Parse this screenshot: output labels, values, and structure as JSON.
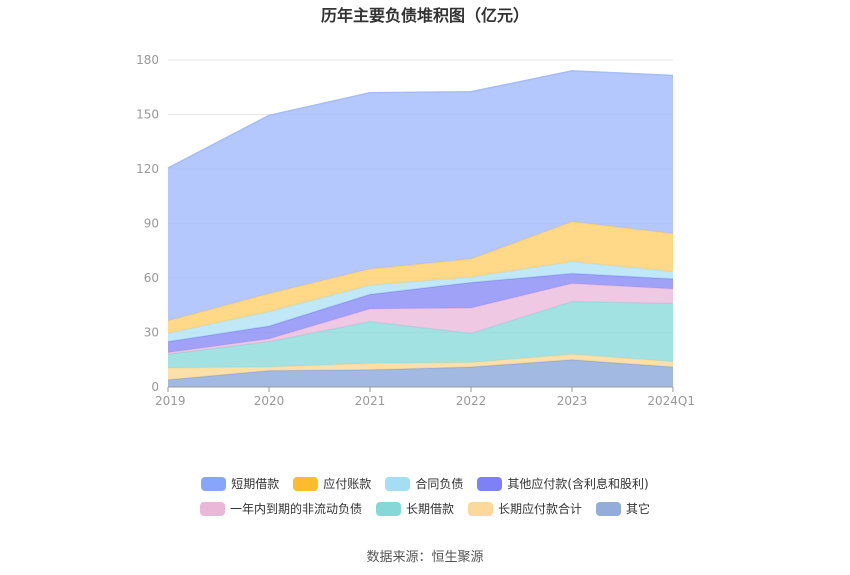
{
  "chart_data": {
    "type": "area",
    "stacked": true,
    "title": "历年主要负债堆积图（亿元）",
    "x": [
      "2019",
      "2020",
      "2021",
      "2022",
      "2023",
      "2024Q1"
    ],
    "ylim": [
      0,
      180
    ],
    "yticks": [
      0,
      30,
      60,
      90,
      120,
      150,
      180
    ],
    "grid": true,
    "legend_position": "bottom",
    "series": [
      {
        "name": "其它",
        "color": "#8ea9db",
        "values": [
          4,
          9,
          9.5,
          11,
          15,
          11
        ]
      },
      {
        "name": "长期应付款合计",
        "color": "#fcd996",
        "values": [
          6.5,
          2,
          3.5,
          2.5,
          3,
          3
        ]
      },
      {
        "name": "长期借款",
        "color": "#8fdcdc",
        "values": [
          7.5,
          14,
          23,
          16,
          29,
          32
        ]
      },
      {
        "name": "一年内到期的非流动负债",
        "color": "#ecbcdd",
        "values": [
          1,
          1.5,
          7,
          14,
          10,
          8
        ]
      },
      {
        "name": "其他应付款(含利息和股利)",
        "color": "#8b8df7",
        "values": [
          6,
          7,
          8,
          14,
          5.5,
          5.5
        ]
      },
      {
        "name": "合同负债",
        "color": "#b3e3f5",
        "values": [
          4.5,
          8,
          5,
          3,
          6.5,
          4
        ]
      },
      {
        "name": "应付账款",
        "color": "#ffd06e",
        "values": [
          7,
          10,
          9,
          10,
          22,
          21
        ]
      },
      {
        "name": "短期借款",
        "color": "#a4bcfc",
        "values": [
          84,
          98,
          97,
          92,
          83,
          87
        ]
      }
    ],
    "legend_order": [
      "短期借款",
      "应付账款",
      "合同负债",
      "其他应付款(含利息和股利)",
      "一年内到期的非流动负债",
      "长期借款",
      "长期应付款合计",
      "其它"
    ],
    "legend_colors": [
      "#86a5fb",
      "#fbbd2e",
      "#a3def5",
      "#7d80f6",
      "#eab7d9",
      "#86d8d8",
      "#fdd89b",
      "#93acd9"
    ]
  },
  "source": "数据来源：恒生聚源"
}
